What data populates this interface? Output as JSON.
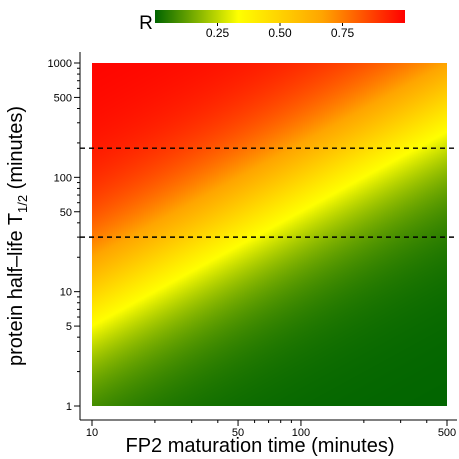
{
  "chart_data": {
    "type": "heatmap",
    "xlabel": "FP2 maturation time (minutes)",
    "ylabel_main": "protein half–life T",
    "ylabel_sub": "1/2",
    "ylabel_tail": " (minutes)",
    "x_scale": "log",
    "y_scale": "log",
    "xlim": [
      10,
      500
    ],
    "ylim": [
      1,
      1000
    ],
    "x_ticks": [
      {
        "value": 10,
        "label": "10"
      },
      {
        "value": 50,
        "label": "50"
      },
      {
        "value": 100,
        "label": "100"
      },
      {
        "value": 500,
        "label": "500"
      }
    ],
    "y_ticks": [
      {
        "value": 1,
        "label": "1"
      },
      {
        "value": 5,
        "label": "5"
      },
      {
        "value": 10,
        "label": "10"
      },
      {
        "value": 50,
        "label": "50"
      },
      {
        "value": 100,
        "label": "100"
      },
      {
        "value": 500,
        "label": "500"
      },
      {
        "value": 1000,
        "label": "1000"
      }
    ],
    "x_minor_ticks": [
      20,
      30,
      40,
      60,
      70,
      80,
      90,
      200,
      300,
      400
    ],
    "y_minor_ticks": [
      2,
      3,
      4,
      6,
      7,
      8,
      9,
      20,
      30,
      40,
      60,
      70,
      80,
      90,
      200,
      300,
      400,
      600,
      700,
      800,
      900
    ],
    "reference_lines": [
      {
        "orientation": "horizontal",
        "y": 180,
        "style": "dashed"
      },
      {
        "orientation": "horizontal",
        "y": 30,
        "style": "dashed"
      }
    ],
    "colorbar": {
      "title": "R",
      "range": [
        0,
        1
      ],
      "ticks": [
        {
          "value": 0.25,
          "label": "0.25"
        },
        {
          "value": 0.5,
          "label": "0.50"
        },
        {
          "value": 0.75,
          "label": "0.75"
        }
      ],
      "colors": [
        "#006400",
        "#ffff00",
        "#ffa500",
        "#ff0000"
      ]
    },
    "model": "R = T_half / (T_half + maturation_time)"
  }
}
